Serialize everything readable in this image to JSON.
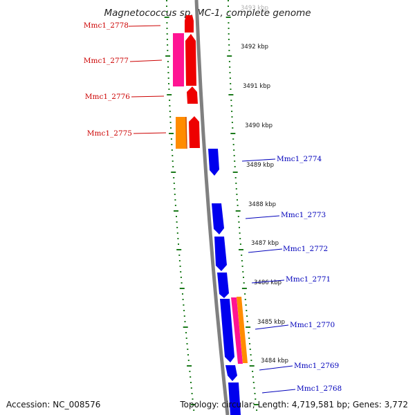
{
  "title": "Magnetococcus sp. MC-1, complete genome",
  "footer": {
    "accession": "Accession: NC_008576",
    "summary": "Topology: circular; Length: 4,719,581 bp; Genes: 3,772"
  },
  "colors": {
    "backbone": "#808080",
    "tick": "#1b7a1b",
    "reverse_label": "#cc0000",
    "forward_label": "#0000bb",
    "cds_reverse": "#ee0000",
    "cds_forward": "#0000ee",
    "pink": "#ff1493",
    "orange": "#ff8c00"
  },
  "scale_labels": [
    "3493 kbp",
    "3492 kbp",
    "3491 kbp",
    "3490 kbp",
    "3489 kbp",
    "3488 kbp",
    "3487 kbp",
    "3486 kbp",
    "3485 kbp",
    "3484 kbp"
  ],
  "genes": [
    {
      "name": "Mmc1_2778",
      "strand": "reverse"
    },
    {
      "name": "Mmc1_2777",
      "strand": "reverse"
    },
    {
      "name": "Mmc1_2776",
      "strand": "reverse"
    },
    {
      "name": "Mmc1_2775",
      "strand": "reverse"
    },
    {
      "name": "Mmc1_2774",
      "strand": "forward"
    },
    {
      "name": "Mmc1_2773",
      "strand": "forward"
    },
    {
      "name": "Mmc1_2772",
      "strand": "forward"
    },
    {
      "name": "Mmc1_2771",
      "strand": "forward"
    },
    {
      "name": "Mmc1_2770",
      "strand": "forward"
    },
    {
      "name": "Mmc1_2769",
      "strand": "forward"
    },
    {
      "name": "Mmc1_2768",
      "strand": "forward"
    }
  ]
}
